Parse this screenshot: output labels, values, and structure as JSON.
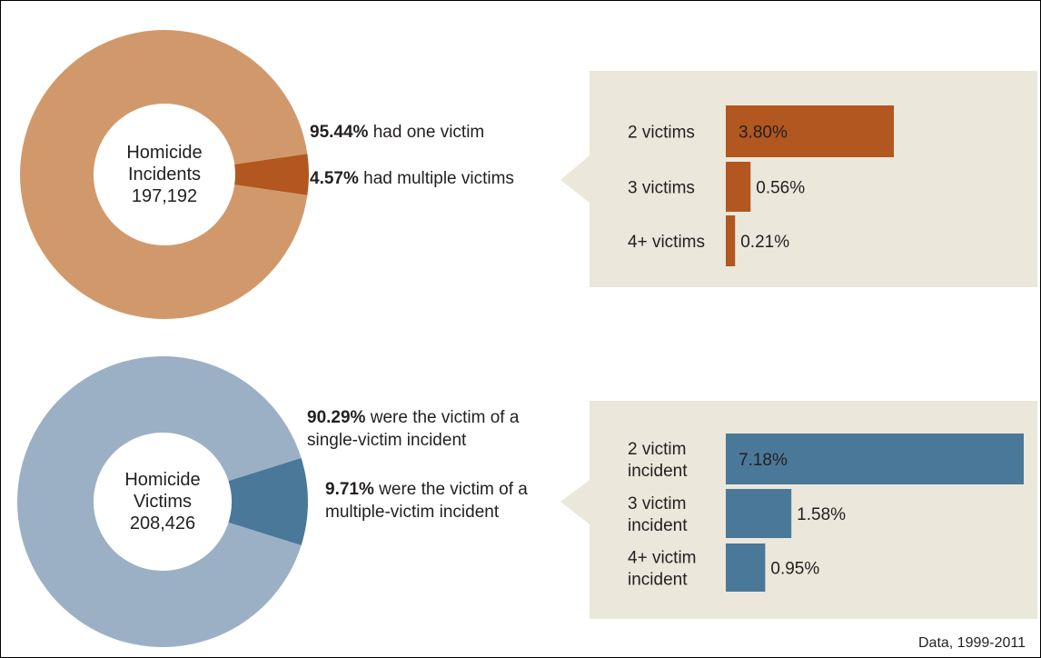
{
  "chart_data": [
    {
      "type": "pie",
      "center_label": [
        "Homicide",
        "Incidents",
        "197,192"
      ],
      "slices": [
        {
          "pct_label": "95.44%",
          "label": "had one victim",
          "value": 95.44
        },
        {
          "pct_label": "4.57%",
          "label": "had multiple victims",
          "value": 4.57
        }
      ],
      "colors": {
        "main": "#d1996b",
        "highlight": "#b25720",
        "callout_bg": "#ebe7db"
      }
    },
    {
      "type": "bar",
      "orientation": "horizontal",
      "categories": [
        [
          "2 victims"
        ],
        [
          "3 victims"
        ],
        [
          "4+ victims"
        ]
      ],
      "values": [
        3.8,
        0.56,
        0.21
      ],
      "labels": [
        "3.80%",
        "0.56%",
        "0.21%"
      ],
      "color": "#b25720"
    },
    {
      "type": "pie",
      "center_label": [
        "Homicide",
        "Victims",
        "208,426"
      ],
      "slices": [
        {
          "pct_label": "90.29%",
          "label": [
            "were the victim of a",
            "single-victim incident"
          ],
          "value": 90.29
        },
        {
          "pct_label": "9.71%",
          "label": [
            "were the victim of a",
            "multiple-victim incident"
          ],
          "value": 9.71
        }
      ],
      "colors": {
        "main": "#9cb0c5",
        "highlight": "#4a7898",
        "callout_bg": "#ebe7db"
      }
    },
    {
      "type": "bar",
      "orientation": "horizontal",
      "categories": [
        [
          "2 victim",
          "incident"
        ],
        [
          "3 victim",
          "incident"
        ],
        [
          "4+ victim",
          "incident"
        ]
      ],
      "values": [
        7.18,
        1.58,
        0.95
      ],
      "labels": [
        "7.18%",
        "1.58%",
        "0.95%"
      ],
      "color": "#4a7898"
    }
  ],
  "footnote": "Data, 1999-2011"
}
